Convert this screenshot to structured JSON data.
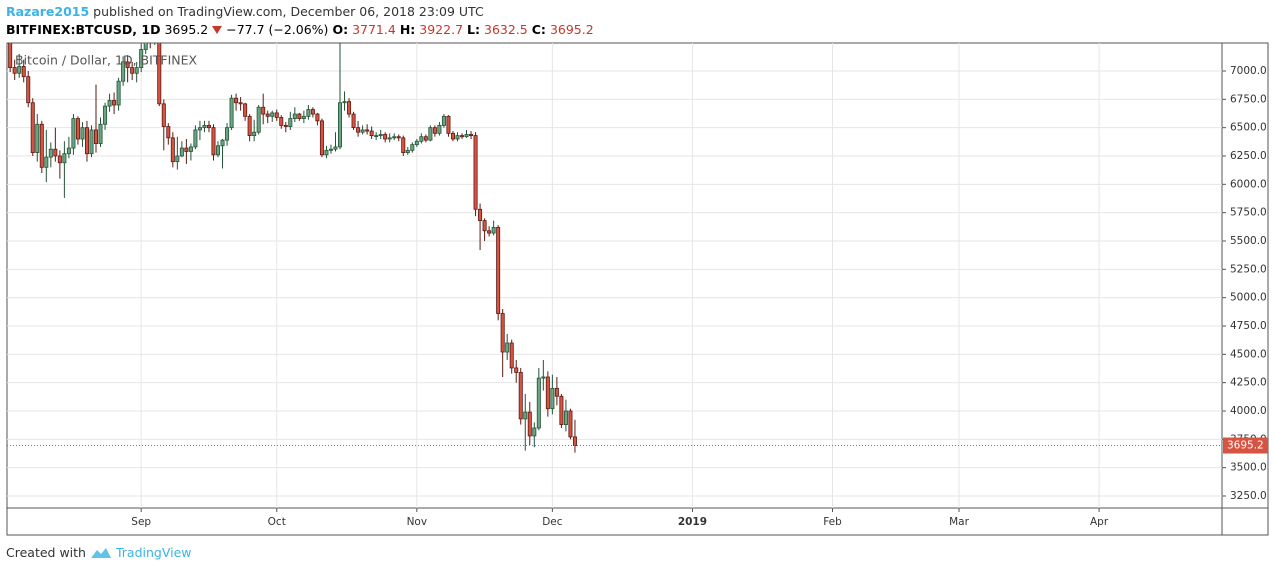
{
  "header": {
    "author": "Razare2015",
    "published": " published on TradingView.com, December 06, 2018 23:09 UTC",
    "symbol": "BITFINEX:BTCUSD, 1D",
    "change": "−77.7 (−2.06%)",
    "ohlc_labels": [
      "O:",
      "H:",
      "L:",
      "C:"
    ]
  },
  "footer": {
    "created": "Created with",
    "brand": "TradingView"
  },
  "chart_data": {
    "type": "candlestick",
    "legend_title": "Bitcoin / Dollar, 1D, BITFINEX",
    "up_color": "#6ba583",
    "up_border": "#225437",
    "down_color": "#d75442",
    "down_border": "#5b1a13",
    "last_price_color": "#d75442",
    "grid": true,
    "xlim": [
      -0.7,
      268.2
    ],
    "xticks": [
      {
        "value": 29,
        "label": "Sep"
      },
      {
        "value": 59,
        "label": "Oct"
      },
      {
        "value": 90,
        "label": "Nov"
      },
      {
        "value": 120,
        "label": "Dec"
      },
      {
        "value": 151,
        "label": "2019"
      },
      {
        "value": 182,
        "label": "Feb"
      },
      {
        "value": 210,
        "label": "Mar"
      },
      {
        "value": 241,
        "label": "Apr"
      }
    ],
    "ylim": [
      3144,
      7247
    ],
    "yticks": [
      {
        "value": 3250,
        "label": "3250.0"
      },
      {
        "value": 3500,
        "label": "3500.0"
      },
      {
        "value": 3750,
        "label": "3750.0"
      },
      {
        "value": 4000,
        "label": "4000.0"
      },
      {
        "value": 4250,
        "label": "4250.0"
      },
      {
        "value": 4500,
        "label": "4500.0"
      },
      {
        "value": 4750,
        "label": "4750.0"
      },
      {
        "value": 5000,
        "label": "5000.0"
      },
      {
        "value": 5250,
        "label": "5250.0"
      },
      {
        "value": 5500,
        "label": "5500.0"
      },
      {
        "value": 5750,
        "label": "5750.0"
      },
      {
        "value": 6000,
        "label": "6000.0"
      },
      {
        "value": 6250,
        "label": "6250.0"
      },
      {
        "value": 6500,
        "label": "6500.0"
      },
      {
        "value": 6750,
        "label": "6750.0"
      },
      {
        "value": 7000,
        "label": "7000.0"
      }
    ],
    "open": [
      7420,
      7030,
      6980,
      7040,
      6950,
      6720,
      6280,
      6530,
      6150,
      6240,
      6310,
      6250,
      6190,
      6270,
      6320,
      6580,
      6400,
      6500,
      6270,
      6480,
      6360,
      6530,
      6690,
      6740,
      6700,
      6910,
      7080,
      7030,
      6980,
      7030,
      7190,
      7280,
      7260,
      7370,
      6710,
      6510,
      6410,
      6200,
      6250,
      6320,
      6290,
      6330,
      6480,
      6500,
      6520,
      6500,
      6260,
      6340,
      6390,
      6500,
      6760,
      6720,
      6710,
      6600,
      6430,
      6460,
      6680,
      6620,
      6600,
      6630,
      6590,
      6520,
      6510,
      6580,
      6620,
      6580,
      6600,
      6660,
      6620,
      6560,
      6260,
      6300,
      6310,
      6330,
      6720,
      6730,
      6620,
      6500,
      6460,
      6480,
      6470,
      6430,
      6430,
      6440,
      6400,
      6410,
      6420,
      6410,
      6280,
      6300,
      6350,
      6380,
      6420,
      6390,
      6500,
      6450,
      6520,
      6600,
      6450,
      6400,
      6430,
      6420,
      6440,
      6430,
      5780,
      5680,
      5590,
      5570,
      5620,
      4860,
      4520,
      4600,
      4380,
      4340,
      3930,
      3990,
      3780,
      3850,
      4290,
      4300,
      4020,
      4200,
      4130,
      3880,
      4000,
      3771.4
    ],
    "high": [
      7500,
      7100,
      7150,
      7100,
      7000,
      6760,
      6620,
      6560,
      6480,
      6370,
      6500,
      6300,
      6380,
      6420,
      6620,
      6600,
      6550,
      6560,
      6520,
      6880,
      6590,
      6720,
      6800,
      6810,
      6940,
      7130,
      7140,
      7080,
      7080,
      7250,
      7400,
      7350,
      7420,
      7390,
      6750,
      6540,
      6460,
      6420,
      6380,
      6400,
      6360,
      6520,
      6560,
      6560,
      6560,
      6530,
      6380,
      6400,
      6540,
      6790,
      6800,
      6770,
      6720,
      6620,
      6570,
      6700,
      6800,
      6650,
      6650,
      6660,
      6610,
      6550,
      6640,
      6680,
      6630,
      6650,
      6700,
      6680,
      6630,
      6580,
      6340,
      6350,
      6460,
      7450,
      6820,
      6760,
      6640,
      6560,
      6520,
      6530,
      6510,
      6460,
      6480,
      6460,
      6450,
      6450,
      6440,
      6430,
      6330,
      6370,
      6400,
      6450,
      6440,
      6520,
      6520,
      6550,
      6620,
      6610,
      6470,
      6460,
      6450,
      6480,
      6470,
      6460,
      5830,
      5700,
      5630,
      5680,
      5640,
      4900,
      4680,
      4630,
      4450,
      4380,
      4150,
      4080,
      3900,
      4380,
      4450,
      4350,
      4320,
      4300,
      4150,
      4100,
      4020,
      3922.7
    ],
    "low": [
      6990,
      6920,
      6940,
      6900,
      6680,
      6250,
      6200,
      6100,
      6020,
      6150,
      6200,
      6050,
      5880,
      6230,
      6260,
      6350,
      6330,
      6200,
      6240,
      6280,
      6330,
      6480,
      6640,
      6620,
      6650,
      6870,
      6900,
      6920,
      6900,
      6990,
      7150,
      7200,
      7230,
      6690,
      6300,
      6350,
      6150,
      6130,
      6240,
      6180,
      6210,
      6310,
      6390,
      6460,
      6460,
      6210,
      6240,
      6140,
      6340,
      6480,
      6650,
      6650,
      6560,
      6380,
      6380,
      6440,
      6530,
      6540,
      6550,
      6560,
      6490,
      6460,
      6480,
      6550,
      6560,
      6540,
      6570,
      6590,
      6520,
      6240,
      6230,
      6270,
      6290,
      6310,
      6650,
      6590,
      6480,
      6420,
      6440,
      6440,
      6400,
      6390,
      6400,
      6370,
      6370,
      6390,
      6380,
      6250,
      6260,
      6280,
      6330,
      6360,
      6370,
      6380,
      6420,
      6430,
      6500,
      6420,
      6380,
      6380,
      6400,
      6410,
      6400,
      5720,
      5420,
      5500,
      5540,
      5550,
      4800,
      4300,
      4450,
      4330,
      4250,
      3880,
      3650,
      3700,
      3680,
      3830,
      4180,
      3950,
      3970,
      4050,
      3850,
      3820,
      3750,
      3632.5
    ],
    "close": [
      7030,
      6980,
      7040,
      6950,
      6720,
      6280,
      6530,
      6150,
      6240,
      6310,
      6250,
      6190,
      6270,
      6320,
      6580,
      6400,
      6500,
      6270,
      6480,
      6360,
      6530,
      6690,
      6740,
      6700,
      6910,
      7080,
      7030,
      6980,
      7030,
      7190,
      7280,
      7260,
      7370,
      6710,
      6510,
      6410,
      6200,
      6250,
      6320,
      6290,
      6330,
      6480,
      6500,
      6520,
      6500,
      6260,
      6340,
      6390,
      6500,
      6760,
      6720,
      6710,
      6600,
      6430,
      6460,
      6680,
      6620,
      6600,
      6630,
      6590,
      6520,
      6510,
      6580,
      6620,
      6580,
      6600,
      6660,
      6620,
      6560,
      6260,
      6300,
      6310,
      6330,
      6720,
      6730,
      6620,
      6500,
      6460,
      6480,
      6470,
      6430,
      6430,
      6440,
      6400,
      6410,
      6420,
      6410,
      6280,
      6300,
      6350,
      6380,
      6420,
      6390,
      6500,
      6450,
      6520,
      6600,
      6450,
      6400,
      6430,
      6420,
      6440,
      6430,
      5780,
      5680,
      5590,
      5570,
      5620,
      4860,
      4520,
      4600,
      4380,
      4340,
      3930,
      3990,
      3780,
      3850,
      4290,
      4300,
      4020,
      4200,
      4130,
      3880,
      4000,
      3771.4,
      3695.2
    ]
  }
}
